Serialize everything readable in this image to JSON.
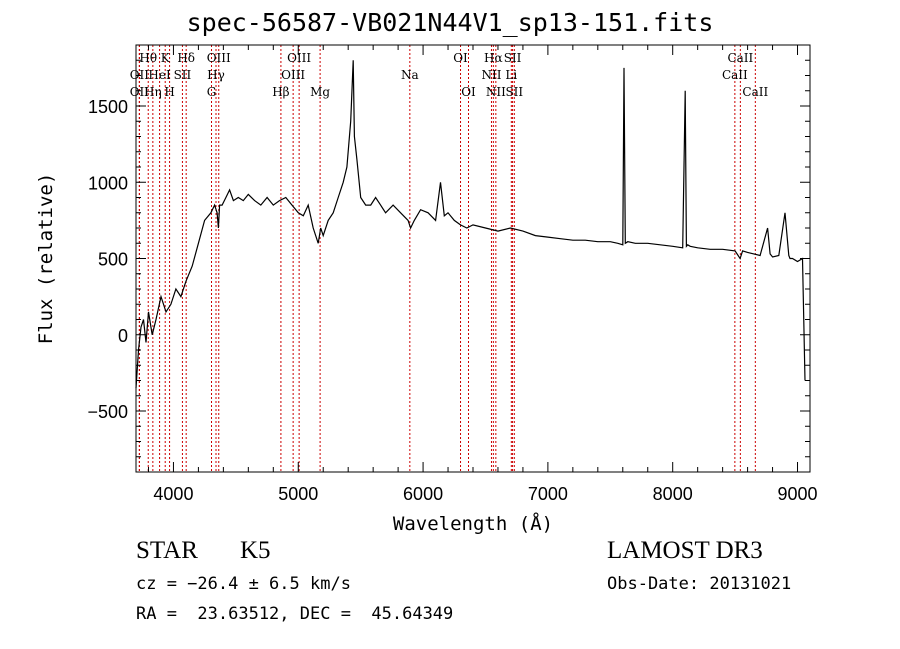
{
  "title": "spec-56587-VB021N44V1_sp13-151.fits",
  "info": {
    "class": "STAR",
    "subclass": "K5",
    "survey": "LAMOST DR3",
    "cz": "cz = −26.4 ± 6.5 km/s",
    "obs_date": "Obs-Date: 20131021",
    "coords": "RA =  23.63512, DEC =  45.64349"
  },
  "chart_data": {
    "type": "line",
    "xlabel": "Wavelength (Å)",
    "ylabel": "Flux (relative)",
    "xlim": [
      3700,
      9100
    ],
    "ylim": [
      -900,
      1900
    ],
    "x_ticks": [
      4000,
      5000,
      6000,
      7000,
      8000,
      9000
    ],
    "y_ticks": [
      -500,
      0,
      500,
      1000,
      1500
    ],
    "y_tick_labels": [
      "−500",
      "0",
      "500",
      "1000",
      "1500"
    ],
    "x": [
      3700,
      3720,
      3740,
      3760,
      3780,
      3800,
      3830,
      3860,
      3900,
      3940,
      3980,
      4020,
      4060,
      4100,
      4150,
      4200,
      4250,
      4300,
      4330,
      4350,
      4360,
      4370,
      4390,
      4420,
      4450,
      4480,
      4520,
      4560,
      4600,
      4650,
      4700,
      4750,
      4800,
      4850,
      4900,
      4950,
      5000,
      5040,
      5080,
      5120,
      5160,
      5180,
      5200,
      5240,
      5280,
      5320,
      5360,
      5390,
      5420,
      5440,
      5450,
      5470,
      5500,
      5540,
      5580,
      5620,
      5660,
      5700,
      5760,
      5820,
      5880,
      5900,
      5930,
      5980,
      6040,
      6100,
      6140,
      6170,
      6200,
      6250,
      6300,
      6350,
      6400,
      6500,
      6600,
      6700,
      6800,
      6900,
      7000,
      7100,
      7200,
      7300,
      7400,
      7500,
      7560,
      7600,
      7610,
      7620,
      7640,
      7700,
      7800,
      7900,
      8000,
      8080,
      8100,
      8110,
      8120,
      8140,
      8200,
      8300,
      8400,
      8500,
      8540,
      8560,
      8600,
      8650,
      8700,
      8760,
      8780,
      8800,
      8850,
      8900,
      8930,
      8940,
      8960,
      9000,
      9040,
      9060
    ],
    "y": [
      -350,
      -100,
      50,
      100,
      -50,
      150,
      0,
      100,
      250,
      150,
      200,
      300,
      250,
      350,
      450,
      600,
      750,
      800,
      850,
      800,
      700,
      850,
      850,
      900,
      950,
      880,
      900,
      880,
      920,
      880,
      850,
      900,
      850,
      880,
      900,
      850,
      800,
      780,
      850,
      700,
      600,
      700,
      650,
      750,
      800,
      900,
      1000,
      1100,
      1400,
      1800,
      1300,
      1150,
      900,
      850,
      850,
      900,
      850,
      800,
      850,
      800,
      750,
      700,
      750,
      820,
      800,
      750,
      1000,
      780,
      800,
      750,
      720,
      700,
      720,
      700,
      680,
      700,
      680,
      650,
      640,
      630,
      620,
      620,
      610,
      610,
      600,
      590,
      1750,
      600,
      610,
      600,
      600,
      590,
      580,
      570,
      1600,
      580,
      590,
      580,
      570,
      560,
      560,
      550,
      500,
      550,
      540,
      530,
      520,
      700,
      530,
      510,
      520,
      800,
      520,
      500,
      500,
      480,
      500,
      -300
    ],
    "series": [
      {
        "name": "",
        "color": "#000000"
      }
    ],
    "line_markers": [
      {
        "label": "OII",
        "x": 3727,
        "row": 2
      },
      {
        "label": "Hθ",
        "x": 3798,
        "row": 1
      },
      {
        "label": "OII",
        "x": 3727,
        "row": 3
      },
      {
        "label": "Hη",
        "x": 3835,
        "row": 3
      },
      {
        "label": "HeI",
        "x": 3889,
        "row": 2
      },
      {
        "label": "K",
        "x": 3934,
        "row": 1
      },
      {
        "label": "H",
        "x": 3969,
        "row": 3
      },
      {
        "label": "SII",
        "x": 4072,
        "row": 2
      },
      {
        "label": "Hδ",
        "x": 4102,
        "row": 1
      },
      {
        "label": "OIII",
        "x": 4363,
        "row": 1
      },
      {
        "label": "Hγ",
        "x": 4341,
        "row": 2
      },
      {
        "label": "G",
        "x": 4305,
        "row": 3
      },
      {
        "label": "Hβ",
        "x": 4861,
        "row": 3
      },
      {
        "label": "OIII",
        "x": 4959,
        "row": 2
      },
      {
        "label": "OIII",
        "x": 5007,
        "row": 1
      },
      {
        "label": "Mg",
        "x": 5175,
        "row": 3
      },
      {
        "label": "Na",
        "x": 5894,
        "row": 2
      },
      {
        "label": "OI",
        "x": 6300,
        "row": 1
      },
      {
        "label": "OI",
        "x": 6364,
        "row": 3
      },
      {
        "label": "NII",
        "x": 6548,
        "row": 2
      },
      {
        "label": "Hα",
        "x": 6563,
        "row": 1
      },
      {
        "label": "NII",
        "x": 6583,
        "row": 3
      },
      {
        "label": "Li",
        "x": 6707,
        "row": 2
      },
      {
        "label": "SII",
        "x": 6717,
        "row": 1
      },
      {
        "label": "SII",
        "x": 6731,
        "row": 3
      },
      {
        "label": "CaII",
        "x": 8498,
        "row": 2
      },
      {
        "label": "CaII",
        "x": 8542,
        "row": 1
      },
      {
        "label": "CaII",
        "x": 8662,
        "row": 3
      }
    ]
  }
}
